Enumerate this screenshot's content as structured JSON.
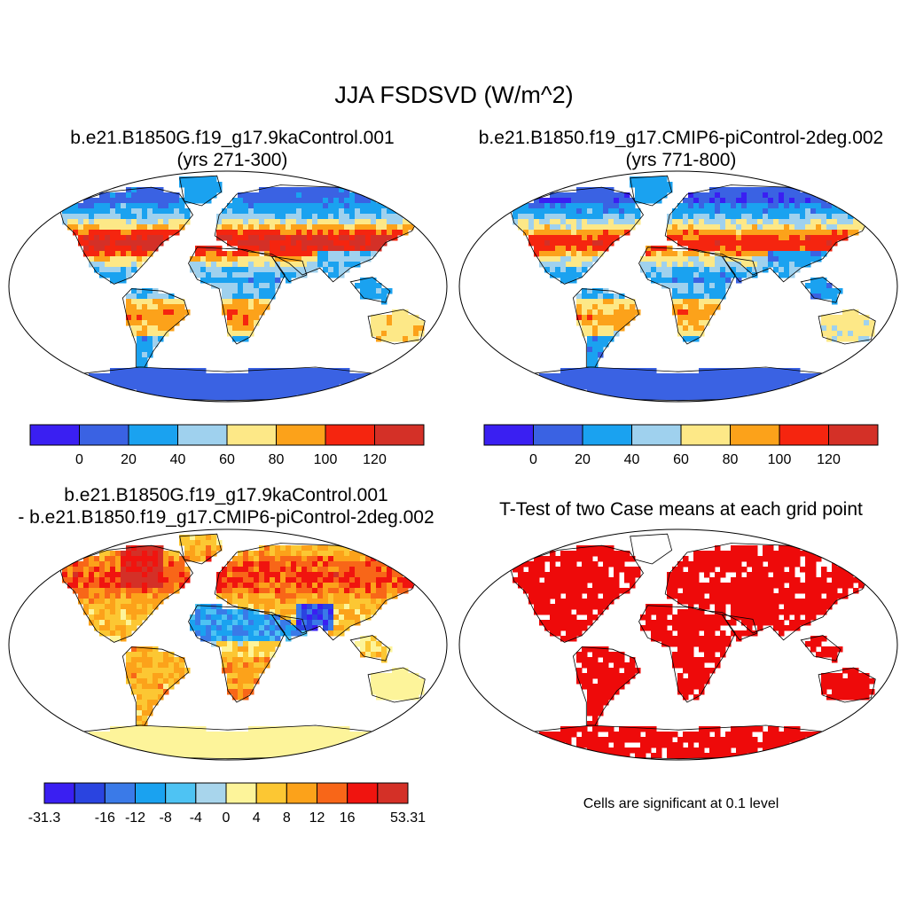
{
  "figure": {
    "title": "JJA FSDSVD (W/m^2)",
    "significance_note": "Cells are significant at 0.1 level"
  },
  "panels": [
    {
      "id": "case1",
      "title_line1": "b.e21.B1850G.f19_g17.9kaControl.001",
      "title_line2": "(yrs 271-300)"
    },
    {
      "id": "case2",
      "title_line1": "b.e21.B1850.f19_g17.CMIP6-piControl-2deg.002",
      "title_line2": "(yrs 771-800)"
    },
    {
      "id": "difference",
      "title_line1": "b.e21.B1850G.f19_g17.9kaControl.001",
      "title_line2": "- b.e21.B1850.f19_g17.CMIP6-piControl-2deg.002"
    },
    {
      "id": "ttest",
      "title_line1": "T-Test of two Case means at each grid point"
    }
  ],
  "colorbars": {
    "absolute": {
      "colors": [
        "#3a1ff2",
        "#3a62e3",
        "#1aa2f0",
        "#9fd1ee",
        "#fde887",
        "#fca21a",
        "#f5250f",
        "#d43027"
      ],
      "tick_labels": [
        "0",
        "20",
        "40",
        "60",
        "80",
        "100",
        "120"
      ]
    },
    "difference": {
      "colors": [
        "#3a1ff2",
        "#2a44e0",
        "#3a7ae8",
        "#1aa2f0",
        "#4ec3f3",
        "#a8d5ec",
        "#fdf49a",
        "#fcc733",
        "#fca21a",
        "#f86618",
        "#f0140f",
        "#d43027"
      ],
      "tick_labels": [
        "-31.3",
        "-16",
        "-12",
        "-8",
        "-4",
        "0",
        "4",
        "8",
        "12",
        "16",
        "53.31"
      ]
    },
    "significance_color": "#ee0a0a"
  }
}
